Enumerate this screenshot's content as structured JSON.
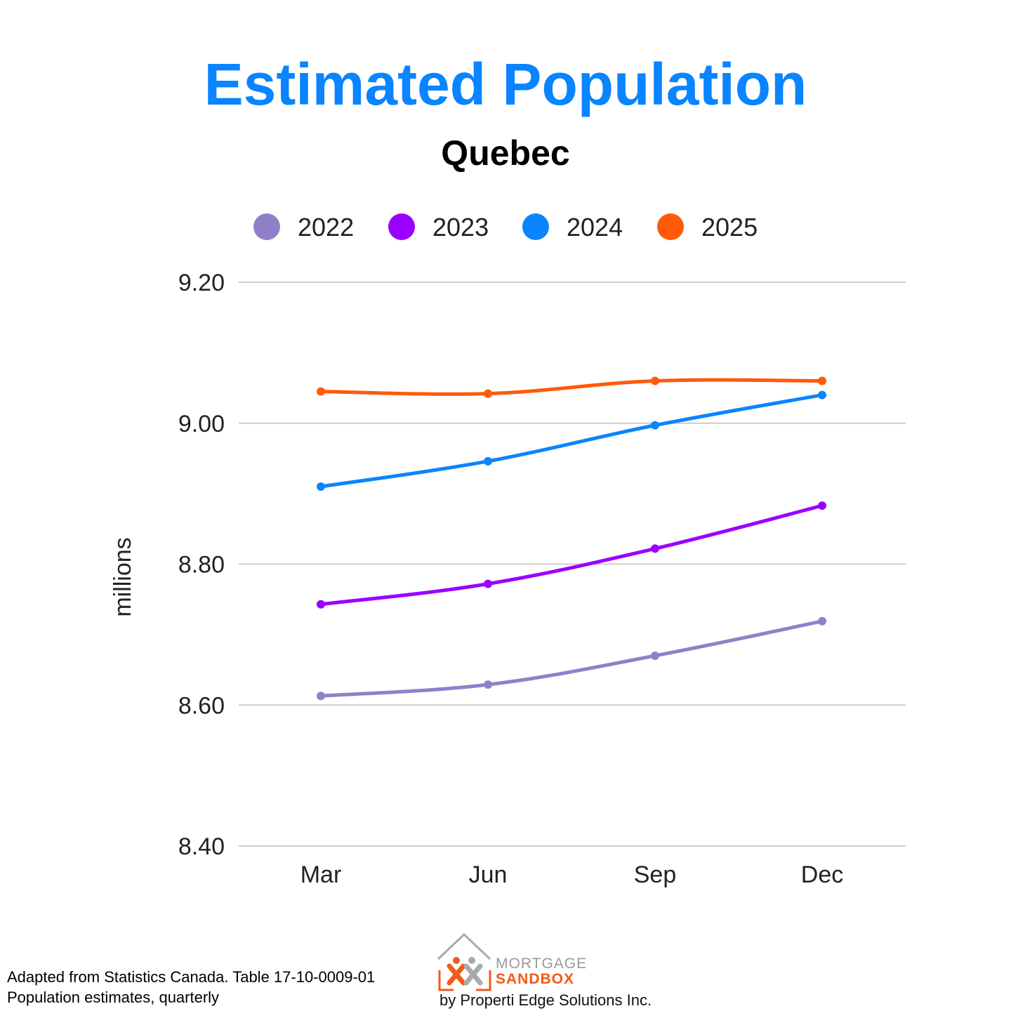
{
  "title": "Estimated Population",
  "subtitle": "Quebec",
  "chart_data": {
    "type": "line",
    "title": "Estimated Population",
    "subtitle": "Quebec",
    "xlabel": "",
    "ylabel": "millions",
    "categories": [
      "Mar",
      "Jun",
      "Sep",
      "Dec"
    ],
    "ylim": [
      8.4,
      9.2
    ],
    "yticks": [
      "8.40",
      "8.60",
      "8.80",
      "9.00",
      "9.20"
    ],
    "grid": true,
    "legend_position": "top",
    "series": [
      {
        "name": "2022",
        "color": "#9080c8",
        "values": [
          8.613,
          8.629,
          8.67,
          8.719
        ]
      },
      {
        "name": "2023",
        "color": "#9900ff",
        "values": [
          8.743,
          8.772,
          8.822,
          8.883
        ]
      },
      {
        "name": "2024",
        "color": "#0a84ff",
        "values": [
          8.91,
          8.946,
          8.997,
          9.04
        ]
      },
      {
        "name": "2025",
        "color": "#ff5a0a",
        "values": [
          9.045,
          9.042,
          9.06,
          9.06
        ]
      }
    ]
  },
  "footer": {
    "source_line1": "Adapted from Statistics Canada. Table 17-10-0009-01",
    "source_line2": "Population estimates, quarterly"
  },
  "logo": {
    "word1": "MORTGAGE",
    "word2": "SANDBOX",
    "byline": "by Properti Edge Solutions Inc."
  },
  "colors": {
    "title": "#0a84ff",
    "grid": "#cccccc",
    "logo_orange": "#f05a1a",
    "logo_gray": "#9a9a9a"
  }
}
